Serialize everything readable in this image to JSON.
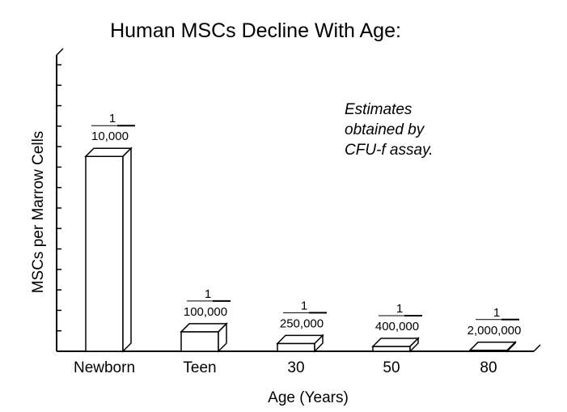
{
  "chart_data": {
    "type": "bar",
    "title": "Human MSCs Decline With Age:",
    "xlabel": "Age (Years)",
    "ylabel": "MSCs per Marrow Cells",
    "categories": [
      "Newborn",
      "Teen",
      "30",
      "50",
      "80"
    ],
    "values": [
      0.0001,
      1e-05,
      4e-06,
      2.5e-06,
      5e-07
    ],
    "data_labels": [
      {
        "numerator": "1",
        "denominator": "10,000"
      },
      {
        "numerator": "1",
        "denominator": "100,000"
      },
      {
        "numerator": "1",
        "denominator": "250,000"
      },
      {
        "numerator": "1",
        "denominator": "400,000"
      },
      {
        "numerator": "1",
        "denominator": "2,000,000"
      }
    ],
    "annotation": [
      "Estimates",
      "obtained by",
      "CFU-f assay."
    ],
    "ylim": [
      0,
      0.000152
    ],
    "grid": false,
    "legend": "none",
    "bar_style": "3d-outline",
    "colors": {
      "stroke": "#000000",
      "fill": "#ffffff"
    }
  }
}
